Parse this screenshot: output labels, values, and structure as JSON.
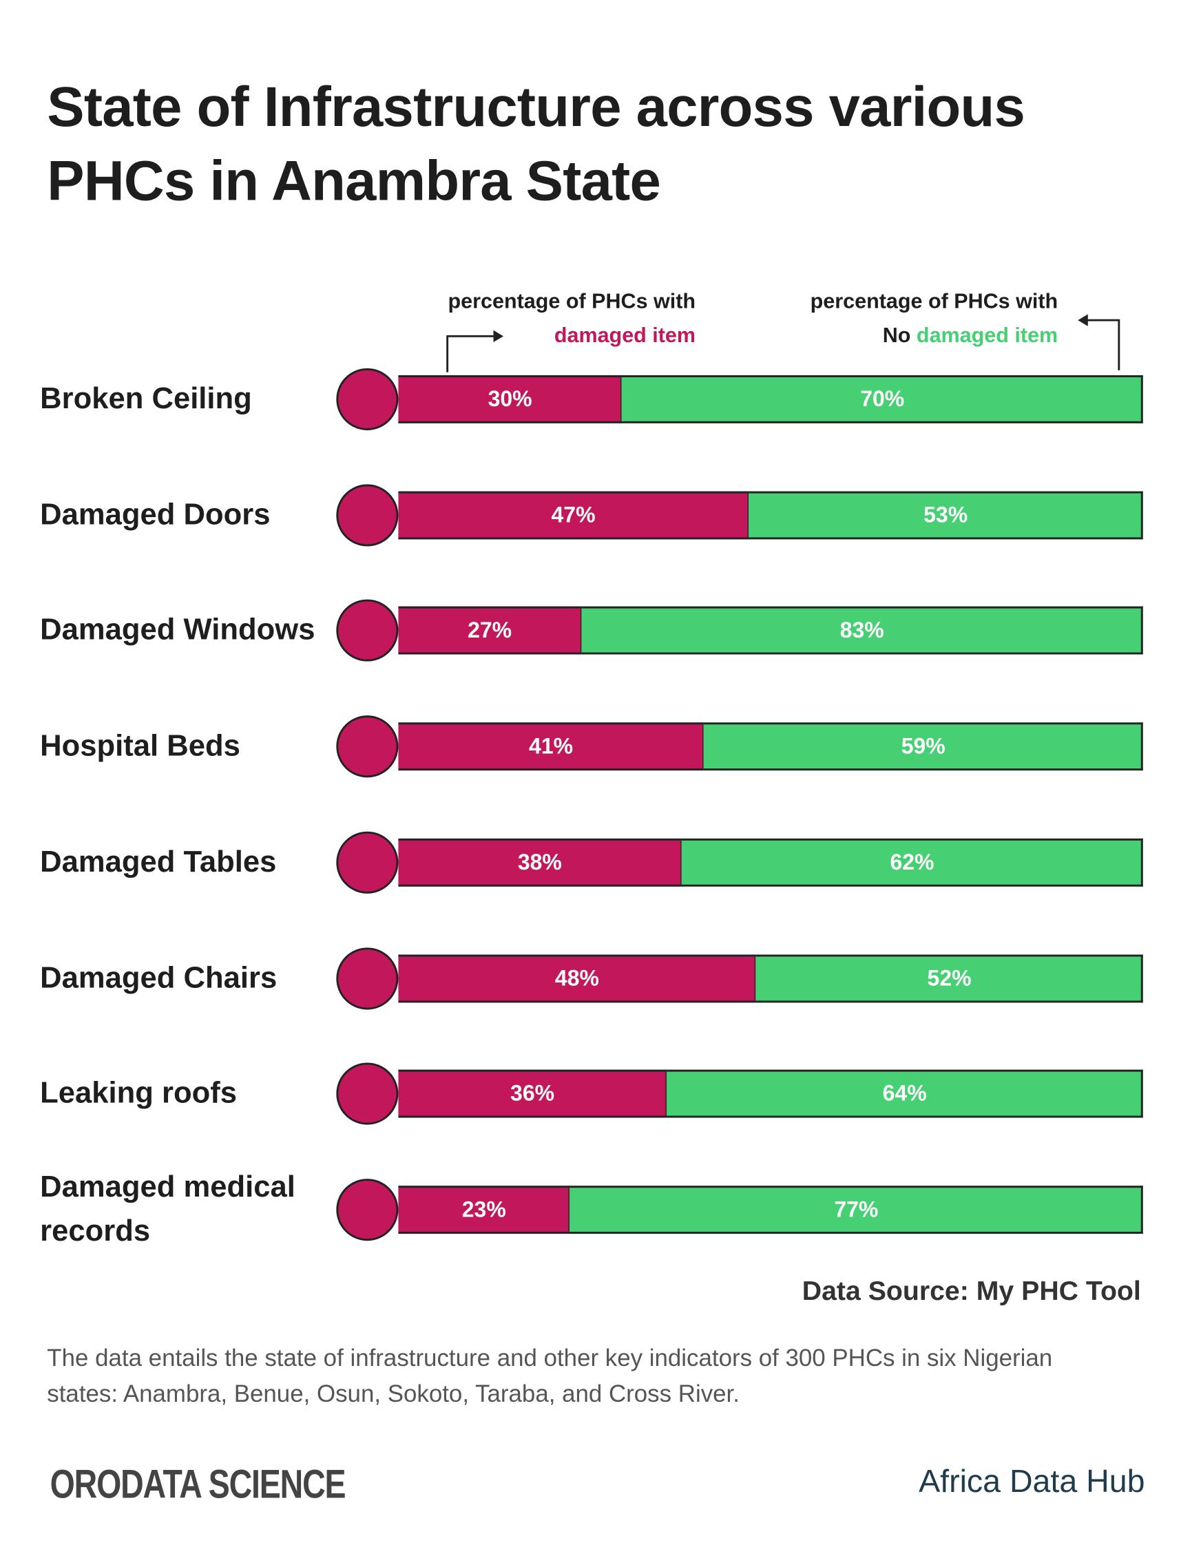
{
  "chart_data": {
    "type": "bar",
    "orientation": "horizontal",
    "stacked": true,
    "title": "State of Infrastructure across various PHCs in Anambra State",
    "categories": [
      "Broken Ceiling",
      "Damaged Doors",
      "Damaged Windows",
      "Hospital Beds",
      "Damaged Tables",
      "Damaged Chairs",
      "Leaking roofs",
      "Damaged medical records"
    ],
    "series": [
      {
        "name": "damaged item",
        "color": "#c2185b",
        "values": [
          30,
          47,
          27,
          41,
          38,
          48,
          36,
          23
        ],
        "value_labels": [
          "30%",
          "47%",
          "27%",
          "41%",
          "38%",
          "48%",
          "36%",
          "23%"
        ]
      },
      {
        "name": "damaged item",
        "color": "#47cf73",
        "values": [
          70,
          53,
          83,
          59,
          62,
          52,
          64,
          77
        ],
        "value_labels": [
          "70%",
          "53%",
          "83%",
          "59%",
          "62%",
          "52%",
          "64%",
          "77%"
        ]
      }
    ],
    "annotations": {
      "left": "percentage of PHCs with",
      "right": "percentage of PHCs with",
      "right_prefix": "No"
    },
    "source": "Data Source: My PHC Tool",
    "note": "The data entails the state of infrastructure and other key indicators of 300 PHCs in six Nigerian states: Anambra, Benue, Osun, Sokoto, Taraba, and Cross River.",
    "logos": [
      "ORODATA SCIENCE",
      "Africa Data Hub"
    ]
  }
}
